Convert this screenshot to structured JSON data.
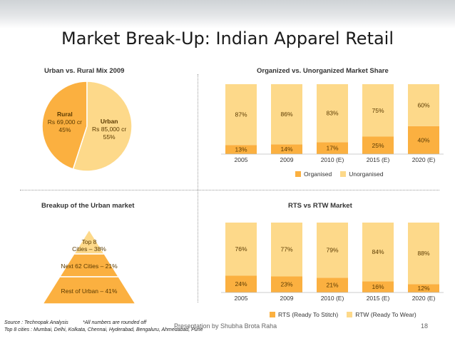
{
  "slide": {
    "title": "Market Break-Up: Indian Apparel Retail",
    "presenter": "Presentation by Shubha Brota Raha",
    "page_number": "18"
  },
  "footer": {
    "source": "Source : Technopak Analysis",
    "note": "*All numbers are rounded off",
    "cities": "Top 8 cities :  Mumbai, Delhi, Kolkata, Chennai, Hyderabad, Bengaluru, Ahmedabad, Pune"
  },
  "colors": {
    "dark": "#fbb040",
    "light": "#fdd98a",
    "text": "#5a3a00"
  },
  "chart_data": [
    {
      "type": "pie",
      "title": "Urban vs. Rural Mix 2009",
      "slices": [
        {
          "name": "Rural",
          "amount": "Rs 69,000 cr",
          "percent_label": "45%",
          "value": 45
        },
        {
          "name": "Urban",
          "amount": "Rs 85,000 cr",
          "percent_label": "55%",
          "value": 55
        }
      ]
    },
    {
      "type": "bar",
      "stacked": true,
      "title": "Organized vs. Unorganized Market Share",
      "categories": [
        "2005",
        "2009",
        "2010 (E)",
        "2015 (E)",
        "2020 (E)"
      ],
      "series": [
        {
          "name": "Organised",
          "values": [
            13,
            14,
            17,
            25,
            40
          ]
        },
        {
          "name": "Unorganised",
          "values": [
            87,
            86,
            83,
            75,
            60
          ]
        }
      ],
      "ylim": [
        0,
        100
      ],
      "legend": "bottom"
    },
    {
      "type": "pyramid",
      "title": "Breakup of the Urban market",
      "levels": [
        {
          "line1": "Top 8",
          "line2": "Cities – 38%",
          "value": 38
        },
        {
          "line1": "Next 62 Cities – 21%",
          "line2": "",
          "value": 21
        },
        {
          "line1": "Rest of Urban – 41%",
          "line2": "",
          "value": 41
        }
      ]
    },
    {
      "type": "bar",
      "stacked": true,
      "title": "RTS vs RTW Market",
      "categories": [
        "2005",
        "2009",
        "2010 (E)",
        "2015 (E)",
        "2020 (E)"
      ],
      "series": [
        {
          "name": "RTS (Ready To Stitch)",
          "values": [
            24,
            23,
            21,
            16,
            12
          ]
        },
        {
          "name": "RTW (Ready To Wear)",
          "values": [
            76,
            77,
            79,
            84,
            88
          ]
        }
      ],
      "ylim": [
        0,
        100
      ],
      "legend": "bottom"
    }
  ]
}
